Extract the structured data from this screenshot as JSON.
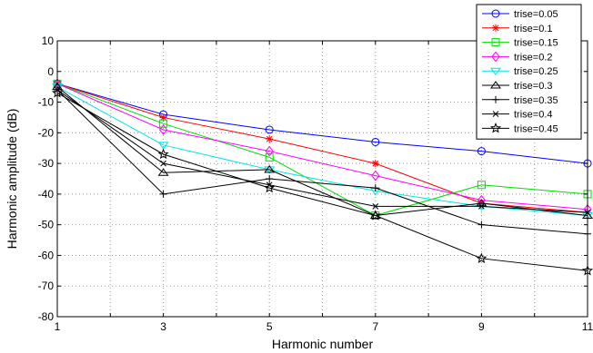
{
  "chart_data": {
    "type": "line",
    "title": "",
    "xlabel": "Harmonic number",
    "ylabel": "Harmonic amplitude (dB)",
    "xlim": [
      1,
      11
    ],
    "ylim": [
      -80,
      10
    ],
    "x_ticks": [
      1,
      3,
      5,
      7,
      9,
      11
    ],
    "y_ticks": [
      10,
      0,
      -10,
      -20,
      -30,
      -40,
      -50,
      -60,
      -70,
      -80
    ],
    "x_tick_labels": [
      "1",
      "3",
      "5",
      "7",
      "9",
      "11"
    ],
    "y_tick_labels": [
      "10",
      "0",
      "-10",
      "-20",
      "-30",
      "-40",
      "-50",
      "-60",
      "-70",
      "-80"
    ],
    "grid": true,
    "legend_position": "top-right outside",
    "x": [
      1,
      3,
      5,
      7,
      9,
      11
    ],
    "series": [
      {
        "name": "trise=0.05",
        "color": "#0000ff",
        "marker": "circle",
        "values": [
          -4,
          -14,
          -19,
          -23,
          -26,
          -30
        ]
      },
      {
        "name": "trise=0.1",
        "color": "#ff0000",
        "marker": "asterisk",
        "values": [
          -4,
          -15,
          -22,
          -30,
          -43,
          -46
        ]
      },
      {
        "name": "trise=0.15",
        "color": "#00dd00",
        "marker": "square",
        "values": [
          -4,
          -17,
          -28,
          -47,
          -37,
          -40
        ]
      },
      {
        "name": "trise=0.2",
        "color": "#ff00ff",
        "marker": "diamond",
        "values": [
          -4,
          -19,
          -26,
          -34,
          -42,
          -45
        ]
      },
      {
        "name": "trise=0.25",
        "color": "#00e5e5",
        "marker": "triangle-down",
        "values": [
          -5,
          -24,
          -32,
          -39,
          -44,
          -47
        ]
      },
      {
        "name": "trise=0.3",
        "color": "#000000",
        "marker": "triangle-up",
        "values": [
          -5,
          -33,
          -32,
          -47,
          -43,
          -47
        ]
      },
      {
        "name": "trise=0.35",
        "color": "#000000",
        "marker": "plus",
        "values": [
          -6,
          -40,
          -35,
          -38,
          -50,
          -53
        ]
      },
      {
        "name": "trise=0.4",
        "color": "#000000",
        "marker": "x",
        "values": [
          -6,
          -30,
          -37,
          -44,
          -44,
          -46
        ]
      },
      {
        "name": "trise=0.45",
        "color": "#000000",
        "marker": "star",
        "values": [
          -7,
          -27,
          -38,
          -47,
          -61,
          -65
        ]
      }
    ]
  }
}
